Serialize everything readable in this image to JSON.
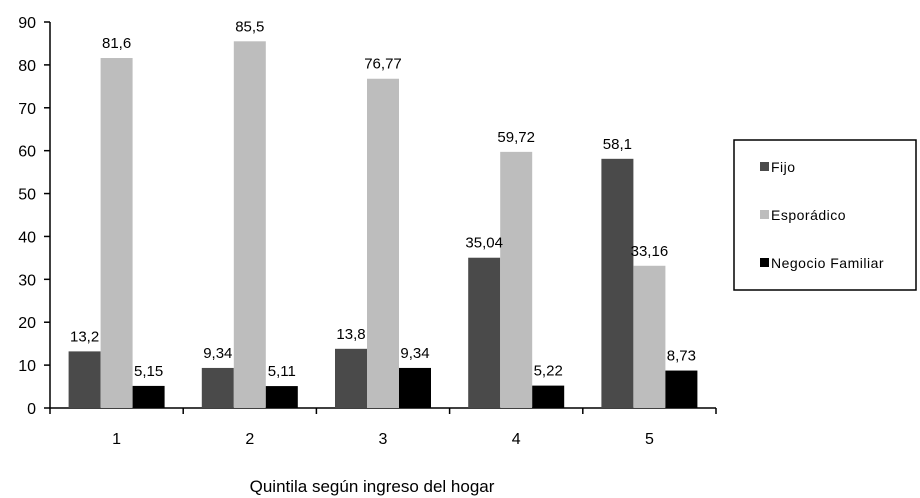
{
  "chart_data": {
    "type": "bar",
    "categories": [
      "1",
      "2",
      "3",
      "4",
      "5"
    ],
    "series": [
      {
        "name": "Fijo",
        "values": [
          13.2,
          9.34,
          13.8,
          35.04,
          58.1
        ],
        "labels": [
          "13,2",
          "9,34",
          "13,8",
          "35,04",
          "58,1"
        ],
        "color": "#4a4a4a"
      },
      {
        "name": "Esporádico",
        "values": [
          81.6,
          85.5,
          76.77,
          59.72,
          33.16
        ],
        "labels": [
          "81,6",
          "85,5",
          "76,77",
          "59,72",
          "33,16"
        ],
        "color": "#bdbdbd"
      },
      {
        "name": "Negocio Familiar",
        "values": [
          5.15,
          5.11,
          9.34,
          5.22,
          8.73
        ],
        "labels": [
          "5,15",
          "5,11",
          "9,34",
          "5,22",
          "8,73"
        ],
        "color": "#000000"
      }
    ],
    "xlabel": "Quintila según ingreso del hogar",
    "ylabel": "",
    "ylim": [
      0,
      90
    ],
    "yticks": [
      "0",
      "10",
      "20",
      "30",
      "40",
      "50",
      "60",
      "70",
      "80",
      "90"
    ],
    "grid": false,
    "legend_position": "right"
  }
}
